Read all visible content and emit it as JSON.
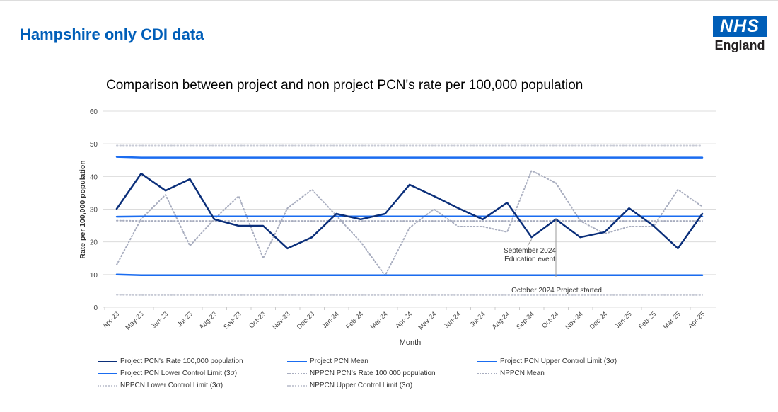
{
  "page": {
    "heading": "Hampshire only CDI data",
    "logo_text": "NHS",
    "logo_subtext": "England"
  },
  "colors": {
    "heading": "#005eb8",
    "project_rate": "#0b2f7a",
    "project_limits": "#1a6cf0",
    "nppcn": "#a8adbf",
    "nppcn_limits": "#c8cbd6"
  },
  "chart_data": {
    "type": "line",
    "title": "Comparison between project and non project PCN's rate per 100,000 population",
    "xlabel": "Month",
    "ylabel": "Rate per 100,000 population",
    "ylim": [
      0,
      60
    ],
    "yticks": [
      "0",
      "10",
      "20",
      "30",
      "40",
      "50",
      "60"
    ],
    "grid": true,
    "legend_position": "bottom",
    "categories": [
      "Apr-23",
      "May-23",
      "Jun-23",
      "Jul-23",
      "Aug-23",
      "Sep-23",
      "Oct-23",
      "Nov-23",
      "Dec-23",
      "Jan-24",
      "Feb-24",
      "Mar-24",
      "Apr-24",
      "May-24",
      "Jun-24",
      "Jul-24",
      "Aug-24",
      "Sep-24",
      "Oct-24",
      "Nov-24",
      "Dec-24",
      "Jan-25",
      "Feb-25",
      "Mar-25",
      "Apr-25"
    ],
    "series": [
      {
        "name": "Project PCN's Rate 100,000 population",
        "style": "solid-dark",
        "values": [
          30.1,
          40.9,
          35.7,
          39.2,
          26.9,
          24.9,
          24.9,
          18.0,
          21.4,
          28.6,
          26.9,
          28.6,
          37.5,
          34.0,
          30.3,
          26.9,
          32.0,
          21.4,
          26.9,
          21.4,
          23.0,
          30.3,
          24.9,
          18.0,
          28.6
        ]
      },
      {
        "name": "Project PCN Mean",
        "style": "solid-blue",
        "values": [
          27.7,
          27.8,
          27.8,
          27.8,
          27.8,
          27.8,
          27.8,
          27.8,
          27.8,
          27.8,
          27.8,
          27.8,
          27.8,
          27.8,
          27.8,
          27.8,
          27.8,
          27.8,
          27.8,
          27.8,
          27.8,
          27.8,
          27.8,
          27.8,
          27.8
        ]
      },
      {
        "name": "Project PCN Upper Control Limit (3σ)",
        "style": "solid-blue",
        "values": [
          46.0,
          45.8,
          45.8,
          45.8,
          45.8,
          45.8,
          45.8,
          45.8,
          45.8,
          45.8,
          45.8,
          45.8,
          45.8,
          45.8,
          45.8,
          45.8,
          45.8,
          45.8,
          45.8,
          45.8,
          45.8,
          45.8,
          45.8,
          45.8,
          45.8
        ]
      },
      {
        "name": "Project PCN Lower Control Limit (3σ)",
        "style": "solid-blue",
        "values": [
          10.0,
          9.8,
          9.8,
          9.8,
          9.8,
          9.8,
          9.8,
          9.8,
          9.8,
          9.8,
          9.8,
          9.8,
          9.8,
          9.8,
          9.8,
          9.8,
          9.8,
          9.8,
          9.8,
          9.8,
          9.8,
          9.8,
          9.8,
          9.8,
          9.8
        ]
      },
      {
        "name": "NPPCN PCN's Rate 100,000 population",
        "style": "dotted",
        "values": [
          13.0,
          27.0,
          34.4,
          18.8,
          27.0,
          34.0,
          15.0,
          30.3,
          36.0,
          28.0,
          20.0,
          9.7,
          24.3,
          30.0,
          24.7,
          24.7,
          23.0,
          41.8,
          38.0,
          26.4,
          22.5,
          24.7,
          24.7,
          36.0,
          30.8
        ]
      },
      {
        "name": "NPPCN Mean",
        "style": "dotted",
        "values": [
          26.5,
          26.4,
          26.4,
          26.4,
          26.4,
          26.4,
          26.4,
          26.4,
          26.4,
          26.4,
          26.4,
          26.4,
          26.4,
          26.4,
          26.4,
          26.4,
          26.4,
          26.4,
          26.4,
          26.4,
          26.4,
          26.4,
          26.4,
          26.4,
          26.4
        ]
      },
      {
        "name": "NPPCN Lower Control Limit (3σ)",
        "style": "dotted-light",
        "values": [
          3.8,
          3.7,
          3.7,
          3.7,
          3.7,
          3.7,
          3.7,
          3.7,
          3.7,
          3.7,
          3.7,
          3.7,
          3.7,
          3.7,
          3.7,
          3.7,
          3.7,
          3.7,
          3.7,
          3.7,
          3.7,
          3.7,
          3.7,
          3.7,
          3.7
        ]
      },
      {
        "name": "NPPCN Upper Control Limit (3σ)",
        "style": "dotted-light",
        "values": [
          49.5,
          49.5,
          49.5,
          49.5,
          49.5,
          49.5,
          49.5,
          49.5,
          49.5,
          49.5,
          49.5,
          49.5,
          49.5,
          49.5,
          49.5,
          49.5,
          49.5,
          49.5,
          49.5,
          49.5,
          49.5,
          49.5,
          49.5,
          49.5,
          49.5
        ]
      }
    ],
    "annotations": [
      {
        "text_lines": [
          "September 2024",
          "Education event"
        ],
        "category": "Sep-24"
      },
      {
        "text_lines": [
          "October 2024 Project started"
        ],
        "category": "Oct-24"
      }
    ]
  }
}
